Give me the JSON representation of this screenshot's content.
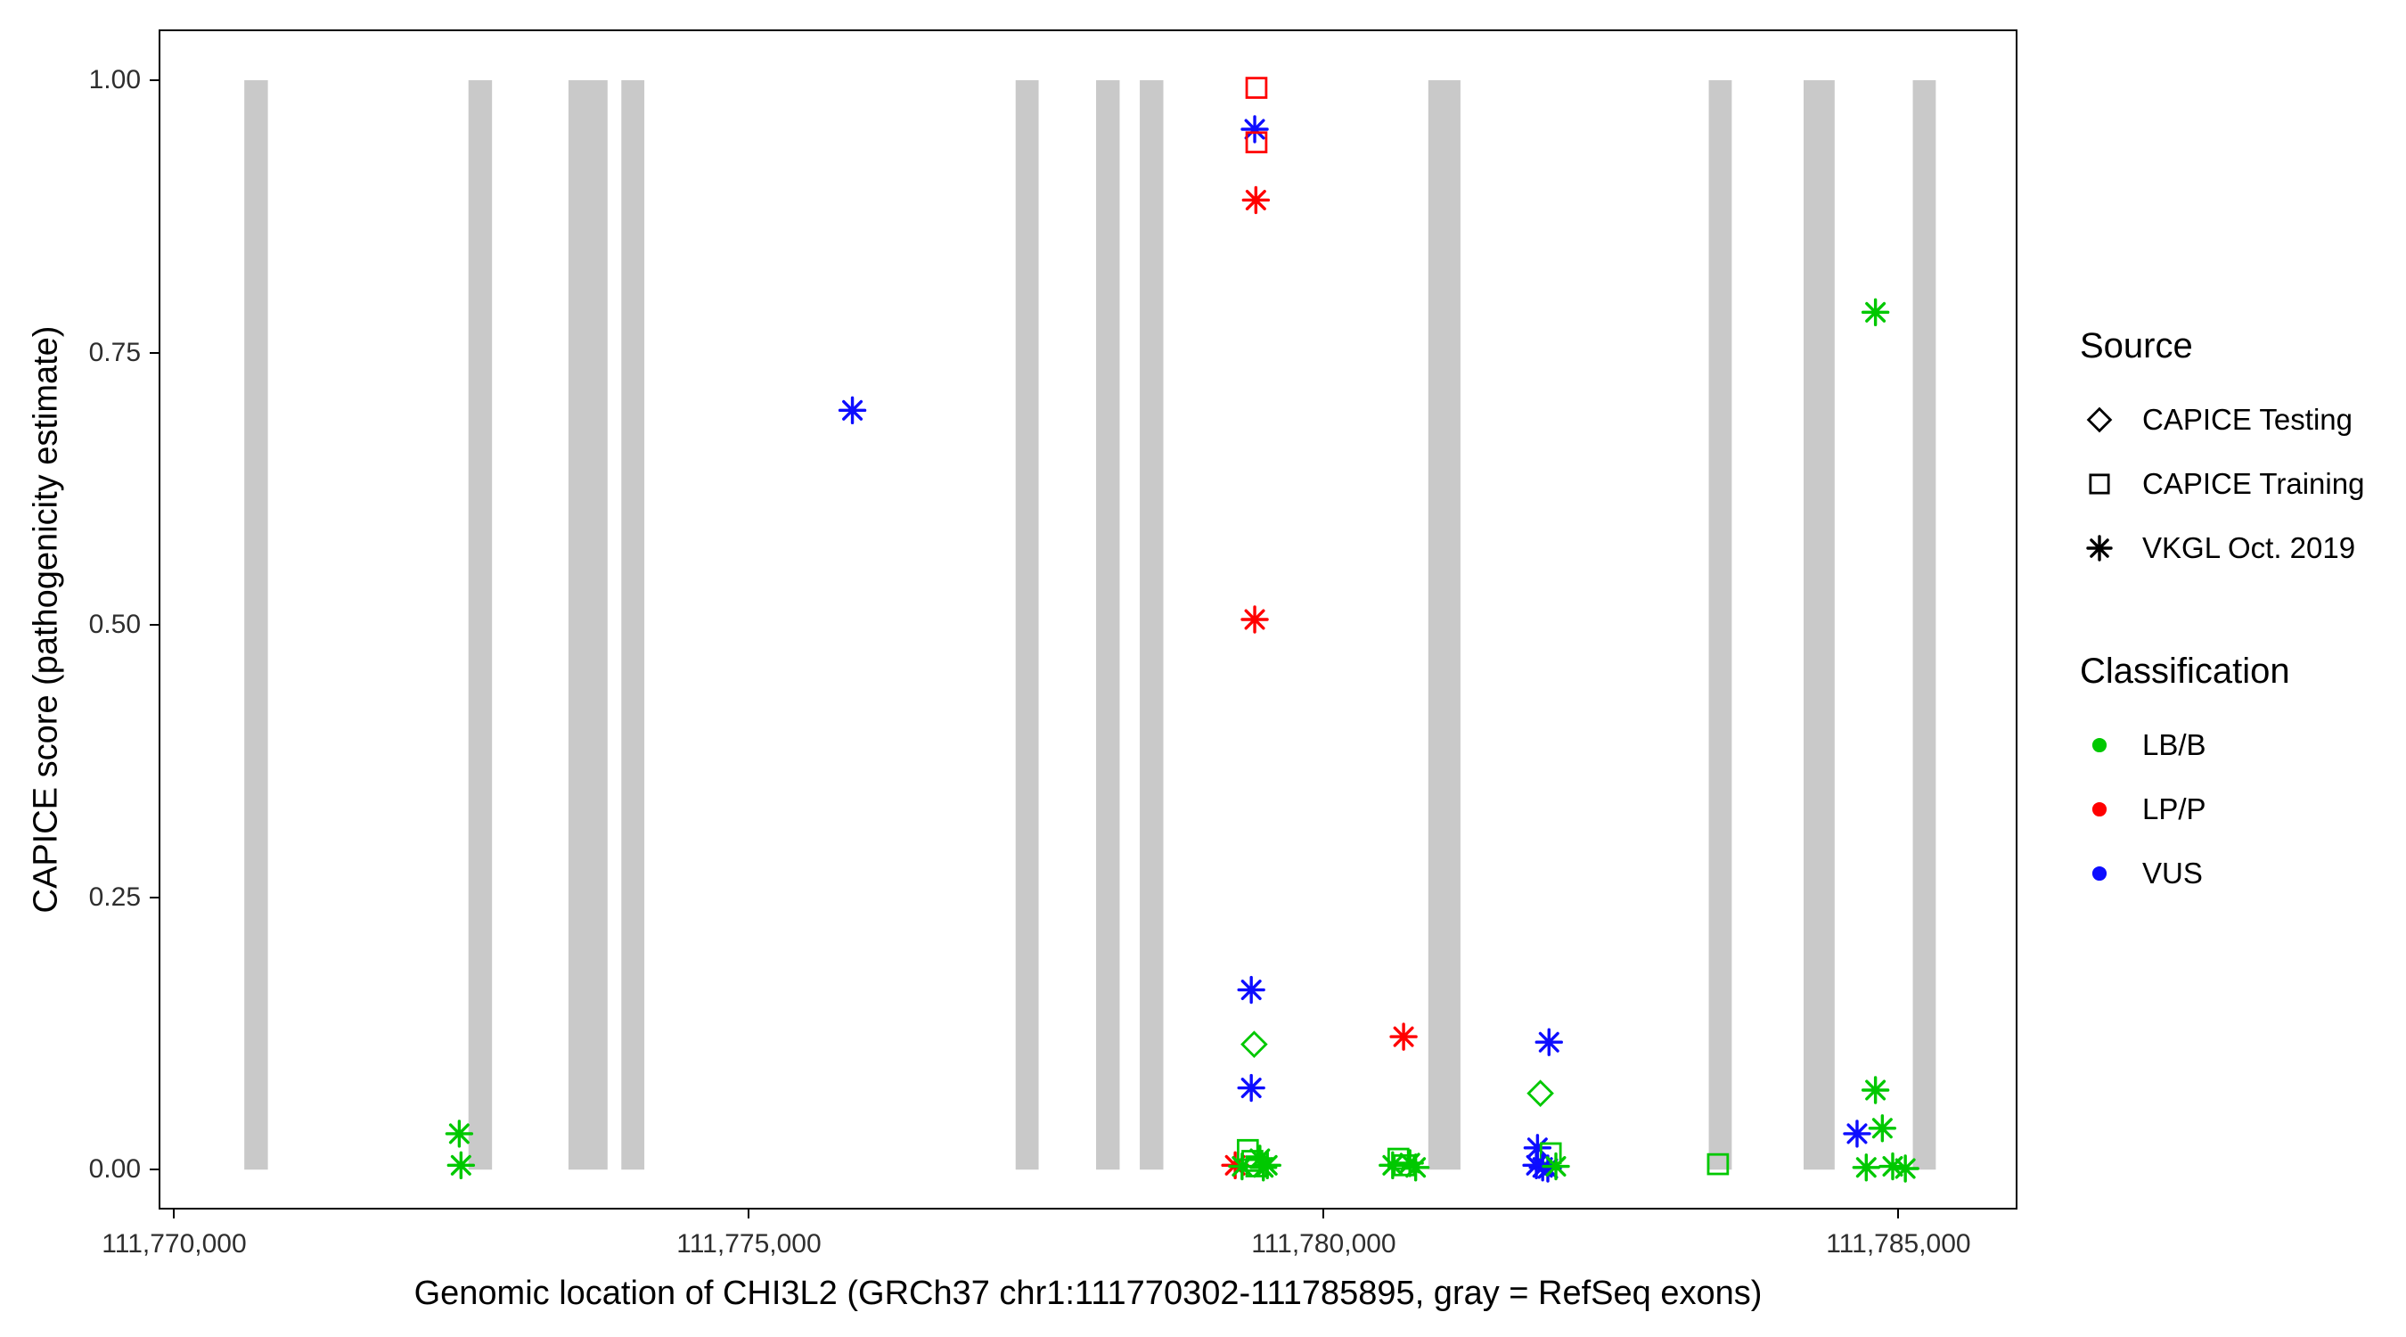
{
  "colors": {
    "LB/B": "#00c800",
    "LP/P": "#ff0000",
    "VUS": "#0d0dff",
    "exon": "#c9c9c9",
    "axis": "#000000"
  },
  "chart_data": {
    "type": "scatter",
    "title": "",
    "xlabel": "Genomic location of CHI3L2 (GRCh37 chr1:111770302-111785895, gray = RefSeq exons)",
    "ylabel": "CAPICE score (pathogenicity estimate)",
    "xlim": [
      111769880,
      111786020
    ],
    "ylim": [
      -0.035,
      1.045
    ],
    "grid": false,
    "x_ticks": [
      {
        "value": 111770000,
        "label": "111,770,000"
      },
      {
        "value": 111775000,
        "label": "111,775,000"
      },
      {
        "value": 111780000,
        "label": "111,780,000"
      },
      {
        "value": 111785000,
        "label": "111,785,000"
      }
    ],
    "y_ticks": [
      {
        "value": 0.0,
        "label": "0.00"
      },
      {
        "value": 0.25,
        "label": "0.25"
      },
      {
        "value": 0.5,
        "label": "0.50"
      },
      {
        "value": 0.75,
        "label": "0.75"
      },
      {
        "value": 1.0,
        "label": "1.00"
      }
    ],
    "exon_band": {
      "ymin": 0.0,
      "ymax": 1.0
    },
    "exons": [
      [
        111770610,
        111770815
      ],
      [
        111772560,
        111772765
      ],
      [
        111773430,
        111773770
      ],
      [
        111773890,
        111774090
      ],
      [
        111777320,
        111777520
      ],
      [
        111778020,
        111778225
      ],
      [
        111778400,
        111778605
      ],
      [
        111780910,
        111781190
      ],
      [
        111783350,
        111783550
      ],
      [
        111784175,
        111784445
      ],
      [
        111785125,
        111785325
      ]
    ],
    "points": [
      {
        "x": 111772480,
        "y": 0.033,
        "source": "VKGL Oct. 2019",
        "class": "LB/B"
      },
      {
        "x": 111772495,
        "y": 0.004,
        "source": "VKGL Oct. 2019",
        "class": "LB/B"
      },
      {
        "x": 111775900,
        "y": 0.697,
        "source": "VKGL Oct. 2019",
        "class": "VUS"
      },
      {
        "x": 111779415,
        "y": 0.993,
        "source": "CAPICE Training",
        "class": "LP/P"
      },
      {
        "x": 111779400,
        "y": 0.955,
        "source": "VKGL Oct. 2019",
        "class": "VUS"
      },
      {
        "x": 111779415,
        "y": 0.943,
        "source": "CAPICE Training",
        "class": "LP/P"
      },
      {
        "x": 111779410,
        "y": 0.89,
        "source": "VKGL Oct. 2019",
        "class": "LP/P"
      },
      {
        "x": 111779400,
        "y": 0.505,
        "source": "VKGL Oct. 2019",
        "class": "LP/P"
      },
      {
        "x": 111779370,
        "y": 0.165,
        "source": "VKGL Oct. 2019",
        "class": "VUS"
      },
      {
        "x": 111779395,
        "y": 0.115,
        "source": "CAPICE Testing",
        "class": "LB/B"
      },
      {
        "x": 111779370,
        "y": 0.075,
        "source": "VKGL Oct. 2019",
        "class": "VUS"
      },
      {
        "x": 111779230,
        "y": 0.004,
        "source": "VKGL Oct. 2019",
        "class": "LP/P"
      },
      {
        "x": 111779290,
        "y": 0.003,
        "source": "VKGL Oct. 2019",
        "class": "LB/B"
      },
      {
        "x": 111779340,
        "y": 0.018,
        "source": "CAPICE Training",
        "class": "LB/B"
      },
      {
        "x": 111779380,
        "y": 0.008,
        "source": "CAPICE Training",
        "class": "LB/B"
      },
      {
        "x": 111779415,
        "y": 0.003,
        "source": "CAPICE Training",
        "class": "LB/B"
      },
      {
        "x": 111779445,
        "y": 0.01,
        "source": "VKGL Oct. 2019",
        "class": "LB/B"
      },
      {
        "x": 111779475,
        "y": 0.002,
        "source": "VKGL Oct. 2019",
        "class": "LB/B"
      },
      {
        "x": 111779510,
        "y": 0.004,
        "source": "VKGL Oct. 2019",
        "class": "LB/B"
      },
      {
        "x": 111780695,
        "y": 0.122,
        "source": "VKGL Oct. 2019",
        "class": "LP/P"
      },
      {
        "x": 111780600,
        "y": 0.004,
        "source": "VKGL Oct. 2019",
        "class": "LB/B"
      },
      {
        "x": 111780650,
        "y": 0.01,
        "source": "CAPICE Training",
        "class": "LB/B"
      },
      {
        "x": 111780700,
        "y": 0.004,
        "source": "CAPICE Training",
        "class": "LB/B"
      },
      {
        "x": 111780750,
        "y": 0.006,
        "source": "VKGL Oct. 2019",
        "class": "LB/B"
      },
      {
        "x": 111780800,
        "y": 0.002,
        "source": "VKGL Oct. 2019",
        "class": "LB/B"
      },
      {
        "x": 111781960,
        "y": 0.117,
        "source": "VKGL Oct. 2019",
        "class": "VUS"
      },
      {
        "x": 111781885,
        "y": 0.07,
        "source": "CAPICE Testing",
        "class": "LB/B"
      },
      {
        "x": 111781860,
        "y": 0.02,
        "source": "VKGL Oct. 2019",
        "class": "VUS"
      },
      {
        "x": 111781975,
        "y": 0.015,
        "source": "CAPICE Training",
        "class": "LB/B"
      },
      {
        "x": 111781850,
        "y": 0.004,
        "source": "VKGL Oct. 2019",
        "class": "VUS"
      },
      {
        "x": 111781905,
        "y": 0.002,
        "source": "VKGL Oct. 2019",
        "class": "VUS"
      },
      {
        "x": 111781950,
        "y": 0.001,
        "source": "VKGL Oct. 2019",
        "class": "VUS"
      },
      {
        "x": 111782020,
        "y": 0.003,
        "source": "VKGL Oct. 2019",
        "class": "LB/B"
      },
      {
        "x": 111783430,
        "y": 0.005,
        "source": "CAPICE Training",
        "class": "LB/B"
      },
      {
        "x": 111784800,
        "y": 0.787,
        "source": "VKGL Oct. 2019",
        "class": "LB/B"
      },
      {
        "x": 111784800,
        "y": 0.073,
        "source": "VKGL Oct. 2019",
        "class": "LB/B"
      },
      {
        "x": 111784640,
        "y": 0.033,
        "source": "VKGL Oct. 2019",
        "class": "VUS"
      },
      {
        "x": 111784860,
        "y": 0.038,
        "source": "VKGL Oct. 2019",
        "class": "LB/B"
      },
      {
        "x": 111784720,
        "y": 0.002,
        "source": "VKGL Oct. 2019",
        "class": "LB/B"
      },
      {
        "x": 111784950,
        "y": 0.003,
        "source": "VKGL Oct. 2019",
        "class": "LB/B"
      },
      {
        "x": 111785060,
        "y": 0.001,
        "source": "VKGL Oct. 2019",
        "class": "LB/B"
      }
    ]
  },
  "legend": {
    "source_title": "Source",
    "source_items": [
      {
        "label": "CAPICE Testing",
        "marker": "diamond"
      },
      {
        "label": "CAPICE Training",
        "marker": "square"
      },
      {
        "label": "VKGL Oct. 2019",
        "marker": "asterisk"
      }
    ],
    "class_title": "Classification",
    "class_items": [
      {
        "label": "LB/B",
        "color": "#00c800"
      },
      {
        "label": "LP/P",
        "color": "#ff0000"
      },
      {
        "label": "VUS",
        "color": "#0d0dff"
      }
    ]
  }
}
